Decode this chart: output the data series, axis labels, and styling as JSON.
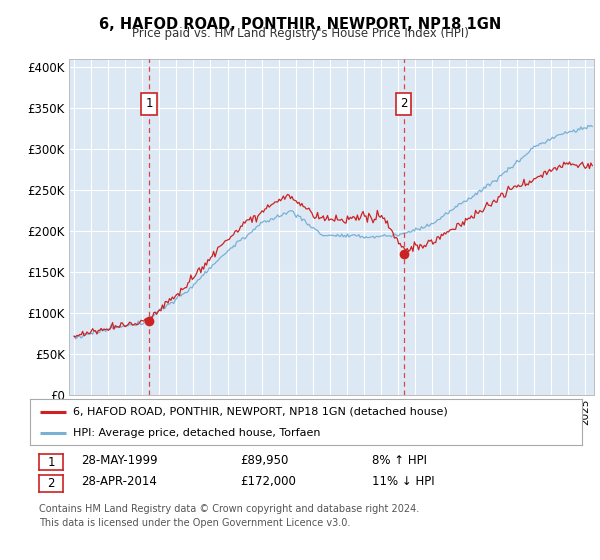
{
  "title": "6, HAFOD ROAD, PONTHIR, NEWPORT, NP18 1GN",
  "subtitle": "Price paid vs. HM Land Registry's House Price Index (HPI)",
  "ylabel_ticks": [
    "£0",
    "£50K",
    "£100K",
    "£150K",
    "£200K",
    "£250K",
    "£300K",
    "£350K",
    "£400K"
  ],
  "ytick_values": [
    0,
    50000,
    100000,
    150000,
    200000,
    250000,
    300000,
    350000,
    400000
  ],
  "ylim": [
    0,
    410000
  ],
  "xlim_start": 1994.7,
  "xlim_end": 2025.5,
  "red_line_color": "#cc2222",
  "blue_line_color": "#7ab0d4",
  "marker1_date": 1999.41,
  "marker1_value": 89950,
  "marker2_date": 2014.33,
  "marker2_value": 172000,
  "marker1_label": "1",
  "marker2_label": "2",
  "vline_color": "#dd4444",
  "plot_bg_color": "#dce9f5",
  "grid_color": "#ffffff",
  "legend_line1": "6, HAFOD ROAD, PONTHIR, NEWPORT, NP18 1GN (detached house)",
  "legend_line2": "HPI: Average price, detached house, Torfaen",
  "note1_label": "1",
  "note1_date": "28-MAY-1999",
  "note1_price": "£89,950",
  "note1_hpi": "8% ↑ HPI",
  "note2_label": "2",
  "note2_date": "28-APR-2014",
  "note2_price": "£172,000",
  "note2_hpi": "11% ↓ HPI",
  "footer": "Contains HM Land Registry data © Crown copyright and database right 2024.\nThis data is licensed under the Open Government Licence v3.0."
}
